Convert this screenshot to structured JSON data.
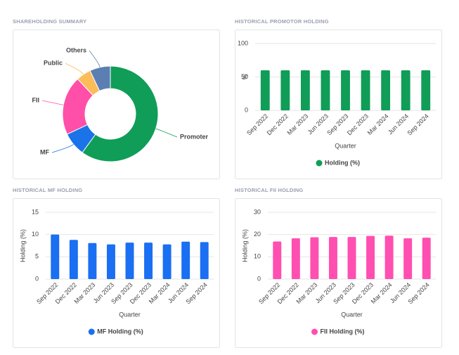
{
  "chart_data": [
    {
      "type": "pie",
      "title": "SHAREHOLDING SUMMARY",
      "categories": [
        "Promoter",
        "MF",
        "FII",
        "Public",
        "Others"
      ],
      "values": [
        60,
        8,
        20,
        5,
        7
      ],
      "colors": [
        "#0f9d58",
        "#1a73e8",
        "#ff4fa8",
        "#fbbc5a",
        "#5b7fb3"
      ]
    },
    {
      "type": "bar",
      "title": "HISTORICAL PROMOTOR HOLDING",
      "categories": [
        "Sep 2022",
        "Dec 2022",
        "Mar 2023",
        "Jun 2023",
        "Sep 2023",
        "Dec 2023",
        "Mar 2024",
        "Jun 2024",
        "Sep 2024"
      ],
      "series": [
        {
          "name": "Holding (%)",
          "color": "#0f9d58",
          "values": [
            60,
            60,
            60,
            60,
            60,
            60,
            60,
            60,
            60
          ]
        }
      ],
      "xlabel": "Quarter",
      "ylabel": "%",
      "ylim": [
        0,
        100
      ],
      "yticks": [
        0,
        50,
        100
      ],
      "grid": true
    },
    {
      "type": "bar",
      "title": "HISTORICAL MF HOLDING",
      "categories": [
        "Sep 2022",
        "Dec 2022",
        "Mar 2023",
        "Jun 2023",
        "Sep 2023",
        "Dec 2023",
        "Mar 2024",
        "Jun 2024",
        "Sep 2024"
      ],
      "series": [
        {
          "name": "MF Holding (%)",
          "color": "#1a6ff2",
          "values": [
            10.0,
            8.8,
            8.1,
            7.8,
            8.2,
            8.2,
            7.8,
            8.4,
            8.3
          ]
        }
      ],
      "xlabel": "Quarter",
      "ylabel": "Holding (%)",
      "ylim": [
        0,
        15
      ],
      "yticks": [
        0,
        5,
        10,
        15
      ],
      "grid": true
    },
    {
      "type": "bar",
      "title": "HISTORICAL FII HOLDING",
      "categories": [
        "Sep 2022",
        "Dec 2022",
        "Mar 2023",
        "Jun 2023",
        "Sep 2023",
        "Dec 2023",
        "Mar 2024",
        "Jun 2024",
        "Sep 2024"
      ],
      "series": [
        {
          "name": "FII Holding (%)",
          "color": "#ff4fb0",
          "values": [
            16.9,
            18.3,
            18.8,
            18.9,
            18.9,
            19.4,
            19.5,
            18.3,
            18.6
          ]
        }
      ],
      "xlabel": "Quarter",
      "ylabel": "Holding (%)",
      "ylim": [
        0,
        30
      ],
      "yticks": [
        0,
        10,
        20,
        30
      ],
      "grid": true
    }
  ]
}
